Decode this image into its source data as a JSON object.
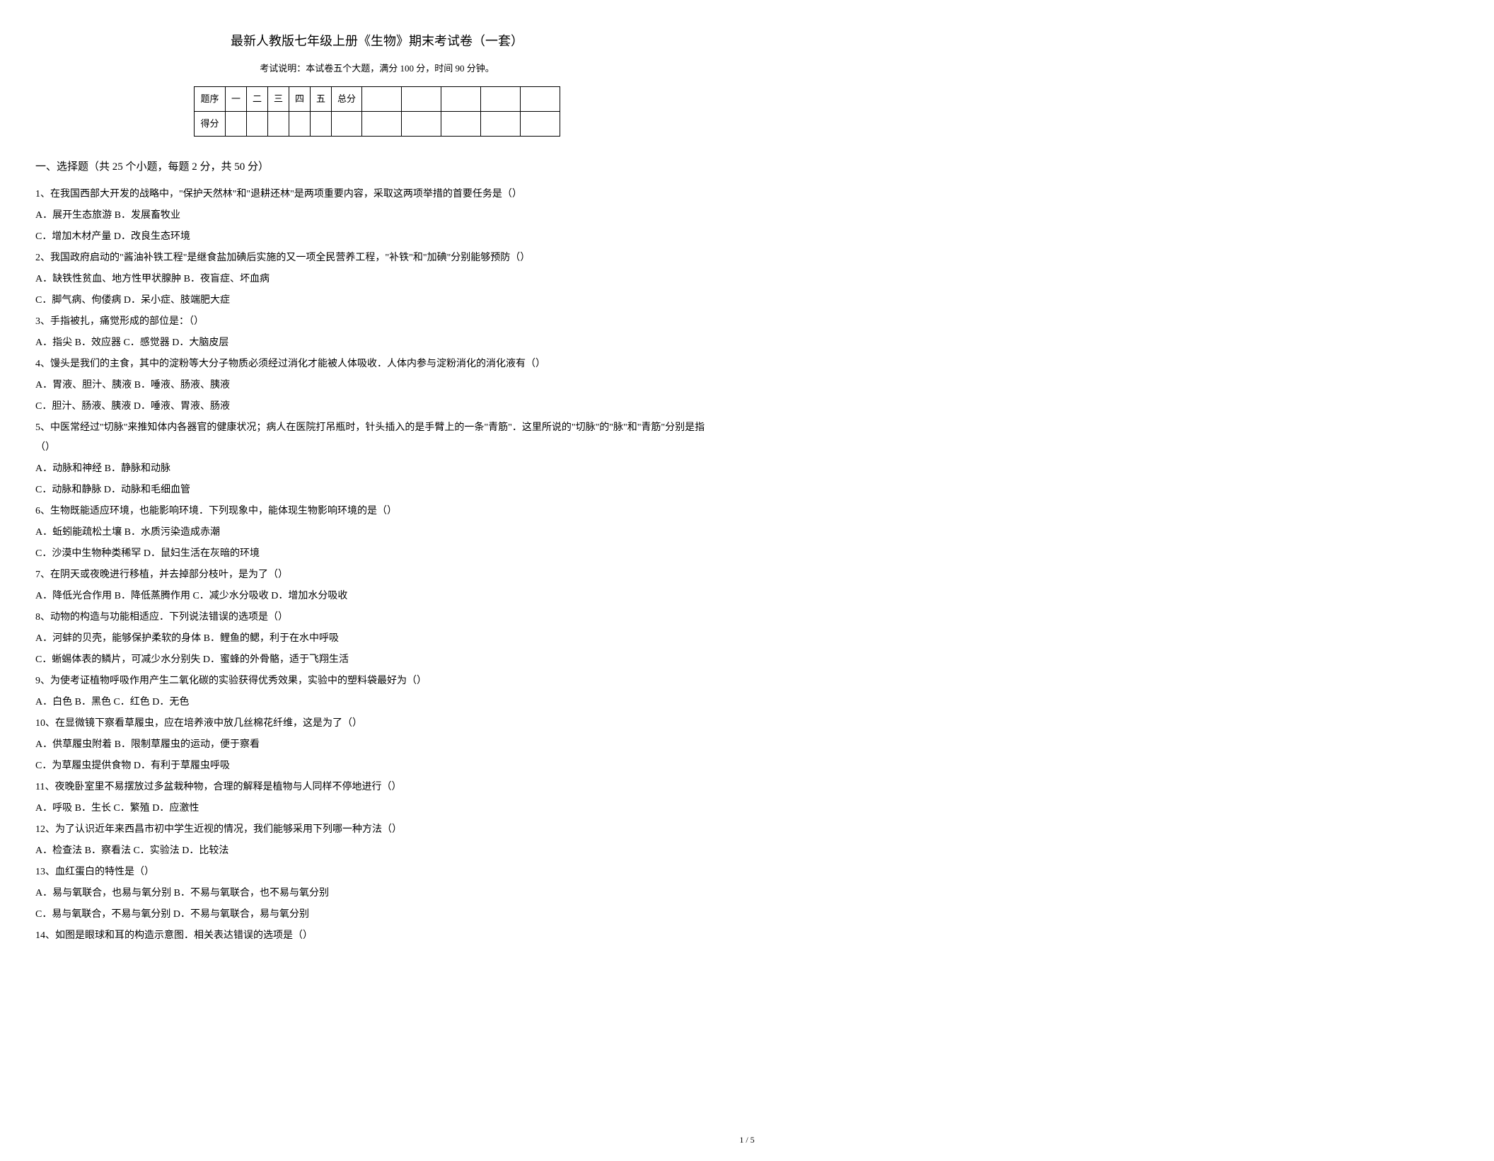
{
  "header": {
    "title": "最新人教版七年级上册《生物》期末考试卷（一套）",
    "subtitle": "考试说明：本试卷五个大题，满分 100 分，时间 90 分钟。"
  },
  "scoreTable": {
    "row1": [
      "题序",
      "一",
      "二",
      "三",
      "四",
      "五",
      "总分"
    ],
    "row2Label": "得分",
    "wideCount": 5
  },
  "section1": {
    "heading": "一、选择题（共 25 个小题，每题 2 分，共 50 分）"
  },
  "questions": [
    {
      "stem": "1、在我国西部大开发的战略中，\"保护天然林\"和\"退耕还林\"是两项重要内容，采取这两项举措的首要任务是（）",
      "opts": [
        "A．展开生态旅游 B．发展畜牧业",
        "C．增加木材产量 D．改良生态环境"
      ]
    },
    {
      "stem": "2、我国政府启动的\"酱油补铁工程\"是继食盐加碘后实施的又一项全民营养工程，\"补铁\"和\"加碘\"分别能够预防（）",
      "opts": [
        "A．缺铁性贫血、地方性甲状腺肿 B．夜盲症、坏血病",
        "C．脚气病、佝偻病 D．呆小症、肢端肥大症"
      ]
    },
    {
      "stem": "3、手指被扎，痛觉形成的部位是：（）",
      "opts": [
        "A．指尖 B．效应器 C．感觉器 D．大脑皮层"
      ]
    },
    {
      "stem": "4、馒头是我们的主食，其中的淀粉等大分子物质必须经过消化才能被人体吸收．人体内参与淀粉消化的消化液有（）",
      "opts": [
        "A．胃液、胆汁、胰液 B．唾液、肠液、胰液",
        "C．胆汁、肠液、胰液 D．唾液、胃液、肠液"
      ]
    },
    {
      "stem": "5、中医常经过\"切脉\"来推知体内各器官的健康状况；病人在医院打吊瓶时，针头插入的是手臂上的一条\"青筋\"．这里所说的\"切脉\"的\"脉\"和\"青筋\"分别是指（）",
      "opts": [
        "A．动脉和神经 B．静脉和动脉",
        "C．动脉和静脉 D．动脉和毛细血管"
      ]
    },
    {
      "stem": "6、生物既能适应环境，也能影响环境．下列现象中，能体现生物影响环境的是（）",
      "opts": [
        "A．蚯蚓能疏松土壤 B．水质污染造成赤潮",
        "C．沙漠中生物种类稀罕 D．鼠妇生活在灰暗的环境"
      ]
    },
    {
      "stem": "7、在阴天或夜晚进行移植，并去掉部分枝叶，是为了（）",
      "opts": [
        "A．降低光合作用 B．降低蒸腾作用 C．减少水分吸收 D．增加水分吸收"
      ]
    },
    {
      "stem": "8、动物的构造与功能相适应．下列说法错误的选项是（）",
      "opts": [
        "A．河蚌的贝壳，能够保护柔软的身体 B．鲤鱼的鳃，利于在水中呼吸",
        "C．蜥蜴体表的鳞片，可减少水分别失 D．蜜蜂的外骨骼，适于飞翔生活"
      ]
    },
    {
      "stem": "9、为使考证植物呼吸作用产生二氧化碳的实验获得优秀效果，实验中的塑料袋最好为（）",
      "opts": [
        "A．白色 B．黑色 C．红色 D．无色"
      ]
    },
    {
      "stem": "10、在显微镜下察看草履虫，应在培养液中放几丝棉花纤维，这是为了（）",
      "opts": [
        "A．供草履虫附着 B．限制草履虫的运动，便于察看",
        "C．为草履虫提供食物 D．有利于草履虫呼吸"
      ]
    },
    {
      "stem": "11、夜晚卧室里不易摆放过多盆栽种物，合理的解释是植物与人同样不停地进行（）",
      "opts": [
        "A．呼吸 B．生长 C．繁殖 D．应激性"
      ]
    },
    {
      "stem": "12、为了认识近年来西昌市初中学生近视的情况，我们能够采用下列哪一种方法（）",
      "opts": [
        "A．检查法 B．察看法 C．实验法 D．比较法"
      ]
    },
    {
      "stem": "13、血红蛋白的特性是（）",
      "opts": [
        "A．易与氧联合，也易与氧分别 B．不易与氧联合，也不易与氧分别",
        "C．易与氧联合，不易与氧分别 D．不易与氧联合，易与氧分别"
      ]
    },
    {
      "stem": "14、如图是眼球和耳的构造示意图．相关表达错误的选项是（）",
      "opts": []
    }
  ],
  "footer": "1 / 5"
}
